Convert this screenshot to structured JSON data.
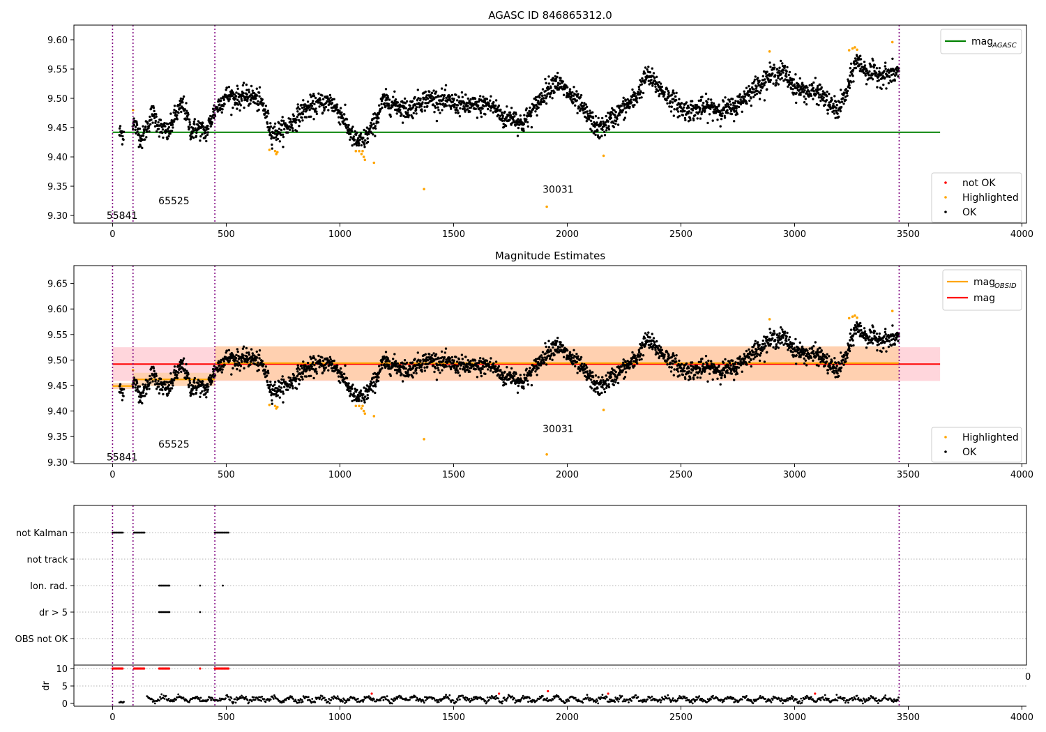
{
  "chart_data": [
    {
      "type": "scatter",
      "title": "AGASC ID 846865312.0",
      "xlim": [
        -170,
        4020
      ],
      "ylim": [
        9.287,
        9.625
      ],
      "xticks": [
        0,
        500,
        1000,
        1500,
        2000,
        2500,
        3000,
        3500,
        4000
      ],
      "yticks": [
        9.3,
        9.35,
        9.4,
        9.45,
        9.5,
        9.55,
        9.6
      ],
      "vlines": [
        0,
        90,
        450,
        3460
      ],
      "obsid_labels": [
        {
          "text": "55841",
          "x": 42,
          "y": 9.3
        },
        {
          "text": "65525",
          "x": 270,
          "y": 9.325
        },
        {
          "text": "30031",
          "x": 1960,
          "y": 9.345
        }
      ],
      "mag_agasc": {
        "value": 9.442,
        "x": [
          0,
          3640
        ]
      },
      "line_legend": [
        {
          "name": "mag",
          "sub": "AGASC",
          "color": "#008000"
        }
      ],
      "point_legend": [
        {
          "name": "not OK",
          "color": "#ff0000"
        },
        {
          "name": "Highlighted",
          "color": "#ffa500"
        },
        {
          "name": "OK",
          "color": "#000000"
        }
      ]
    },
    {
      "type": "scatter",
      "title": "Magnitude Estimates",
      "xlim": [
        -170,
        4020
      ],
      "ylim": [
        9.297,
        9.685
      ],
      "xticks": [
        0,
        500,
        1000,
        1500,
        2000,
        2500,
        3000,
        3500,
        4000
      ],
      "yticks": [
        9.3,
        9.35,
        9.4,
        9.45,
        9.5,
        9.55,
        9.6,
        9.65
      ],
      "vlines": [
        0,
        90,
        450,
        3460
      ],
      "obsid_labels": [
        {
          "text": "55841",
          "x": 42,
          "y": 9.31
        },
        {
          "text": "65525",
          "x": 270,
          "y": 9.335
        },
        {
          "text": "30031",
          "x": 1960,
          "y": 9.365
        }
      ],
      "mag": {
        "value": 9.492,
        "band": [
          9.459,
          9.525
        ],
        "x": [
          0,
          3640
        ]
      },
      "mag_obsid": [
        {
          "x": [
            0,
            90
          ],
          "value": 9.449,
          "band": [
            9.443,
            9.455
          ]
        },
        {
          "x": [
            90,
            450
          ],
          "value": 9.462,
          "band": [
            9.449,
            9.475
          ]
        },
        {
          "x": [
            450,
            3460
          ],
          "value": 9.494,
          "band": [
            9.46,
            9.527
          ]
        }
      ],
      "line_legend": [
        {
          "name": "mag",
          "sub": "OBSID",
          "color": "#ffa500"
        },
        {
          "name": "mag",
          "sub": "",
          "color": "#ff0000"
        }
      ],
      "point_legend": [
        {
          "name": "Highlighted",
          "color": "#ffa500"
        },
        {
          "name": "OK",
          "color": "#000000"
        }
      ]
    },
    {
      "type": "scatter",
      "xlim": [
        -170,
        4020
      ],
      "categories": [
        "not Kalman",
        "not track",
        "Ion. rad.",
        "dr > 5",
        "OBS not OK"
      ],
      "flag_intervals": {
        "not Kalman": [
          [
            0,
            45
          ],
          [
            95,
            140
          ],
          [
            450,
            510
          ]
        ],
        "Ion. rad.": [
          [
            205,
            250
          ]
        ],
        "dr > 5": [
          [
            205,
            250
          ]
        ]
      },
      "flag_points": {
        "Ion. rad.": [
          385,
          485
        ],
        "dr > 5": [
          385
        ]
      },
      "dr_panel": {
        "ylabel": "dr",
        "yticks": [
          0,
          5,
          10
        ],
        "ylim": [
          -0.8,
          11
        ],
        "overflow_label": "0",
        "clipped_intervals": [
          [
            0,
            45
          ],
          [
            95,
            140
          ],
          [
            205,
            250
          ],
          [
            450,
            510
          ]
        ],
        "clipped_points": [
          385
        ]
      },
      "xticks": [
        0,
        500,
        1000,
        1500,
        2000,
        2500,
        3000,
        3500,
        4000
      ],
      "vlines": [
        0,
        90,
        450,
        3460
      ]
    }
  ],
  "colors": {
    "ok": "#000000",
    "highlighted": "#ffa500",
    "not_ok": "#ff0000",
    "agasc": "#008000",
    "vline": "#800080",
    "band_mag": "#ffd6dc",
    "band_obsid": "#ffcfa8"
  }
}
